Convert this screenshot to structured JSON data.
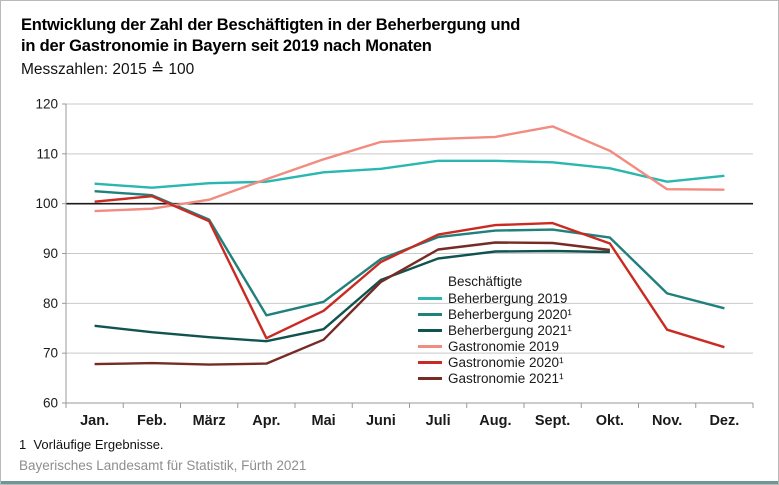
{
  "header": {
    "title_line1": "Entwicklung der Zahl der Beschäftigten in der Beherbergung und",
    "title_line2": "in der Gastronomie in Bayern seit 2019 nach Monaten",
    "subtitle": "Messzahlen: 2015 ≙ 100"
  },
  "footer": {
    "footnote": "1  Vorläufige Ergebnisse.",
    "source": "Bayerisches Landesamt für Statistik, Fürth 2021"
  },
  "colors": {
    "grid": "#c9c9c9",
    "axis": "#999999",
    "baseline": "#1a1a1a",
    "text": "#1a1a1a",
    "source_text": "#8e8e8e",
    "bottom_accent": "#6f9694"
  },
  "chart_data": {
    "type": "line",
    "title": "Entwicklung der Zahl der Beschäftigten in der Beherbergung und in der Gastronomie in Bayern seit 2019 nach Monaten",
    "subtitle": "Messzahlen: 2015 ≙ 100",
    "categories": [
      "Jan.",
      "Feb.",
      "März",
      "Apr.",
      "Mai",
      "Juni",
      "Juli",
      "Aug.",
      "Sept.",
      "Okt.",
      "Nov.",
      "Dez."
    ],
    "xlabel": "",
    "ylabel": "",
    "ylim": [
      60,
      120
    ],
    "yticks": [
      60,
      70,
      80,
      90,
      100,
      110,
      120
    ],
    "baseline_value": 100,
    "grid": true,
    "legend_title": "Beschäftigte",
    "legend_position": "inside-right-bottom",
    "series": [
      {
        "name": "Beherbergung 2019",
        "color": "#2ab7b0",
        "values": [
          104.0,
          103.2,
          104.1,
          104.4,
          106.3,
          107.0,
          108.6,
          108.6,
          108.3,
          107.1,
          104.4,
          105.6
        ]
      },
      {
        "name": "Beherbergung 2020¹",
        "color": "#1f807c",
        "values": [
          102.5,
          101.7,
          96.8,
          77.6,
          80.3,
          88.9,
          93.3,
          94.6,
          94.8,
          93.2,
          82.0,
          79.0
        ]
      },
      {
        "name": "Beherbergung 2021¹",
        "color": "#0f544f",
        "values": [
          75.5,
          74.2,
          73.2,
          72.4,
          74.8,
          84.7,
          89.0,
          90.4,
          90.5,
          90.3,
          null,
          null
        ]
      },
      {
        "name": "Gastronomie 2019",
        "color": "#f28b80",
        "values": [
          98.5,
          99.0,
          100.8,
          104.9,
          108.9,
          112.4,
          113.0,
          113.4,
          115.5,
          110.6,
          102.9,
          102.8
        ]
      },
      {
        "name": "Gastronomie 2020¹",
        "color": "#c92b22",
        "values": [
          100.4,
          101.5,
          96.5,
          73.0,
          78.5,
          88.3,
          93.8,
          95.7,
          96.1,
          92.0,
          74.7,
          71.2
        ]
      },
      {
        "name": "Gastronomie 2021¹",
        "color": "#772b24",
        "values": [
          67.8,
          68.0,
          67.7,
          67.9,
          72.7,
          84.3,
          90.8,
          92.2,
          92.1,
          90.7,
          null,
          null
        ]
      }
    ]
  }
}
